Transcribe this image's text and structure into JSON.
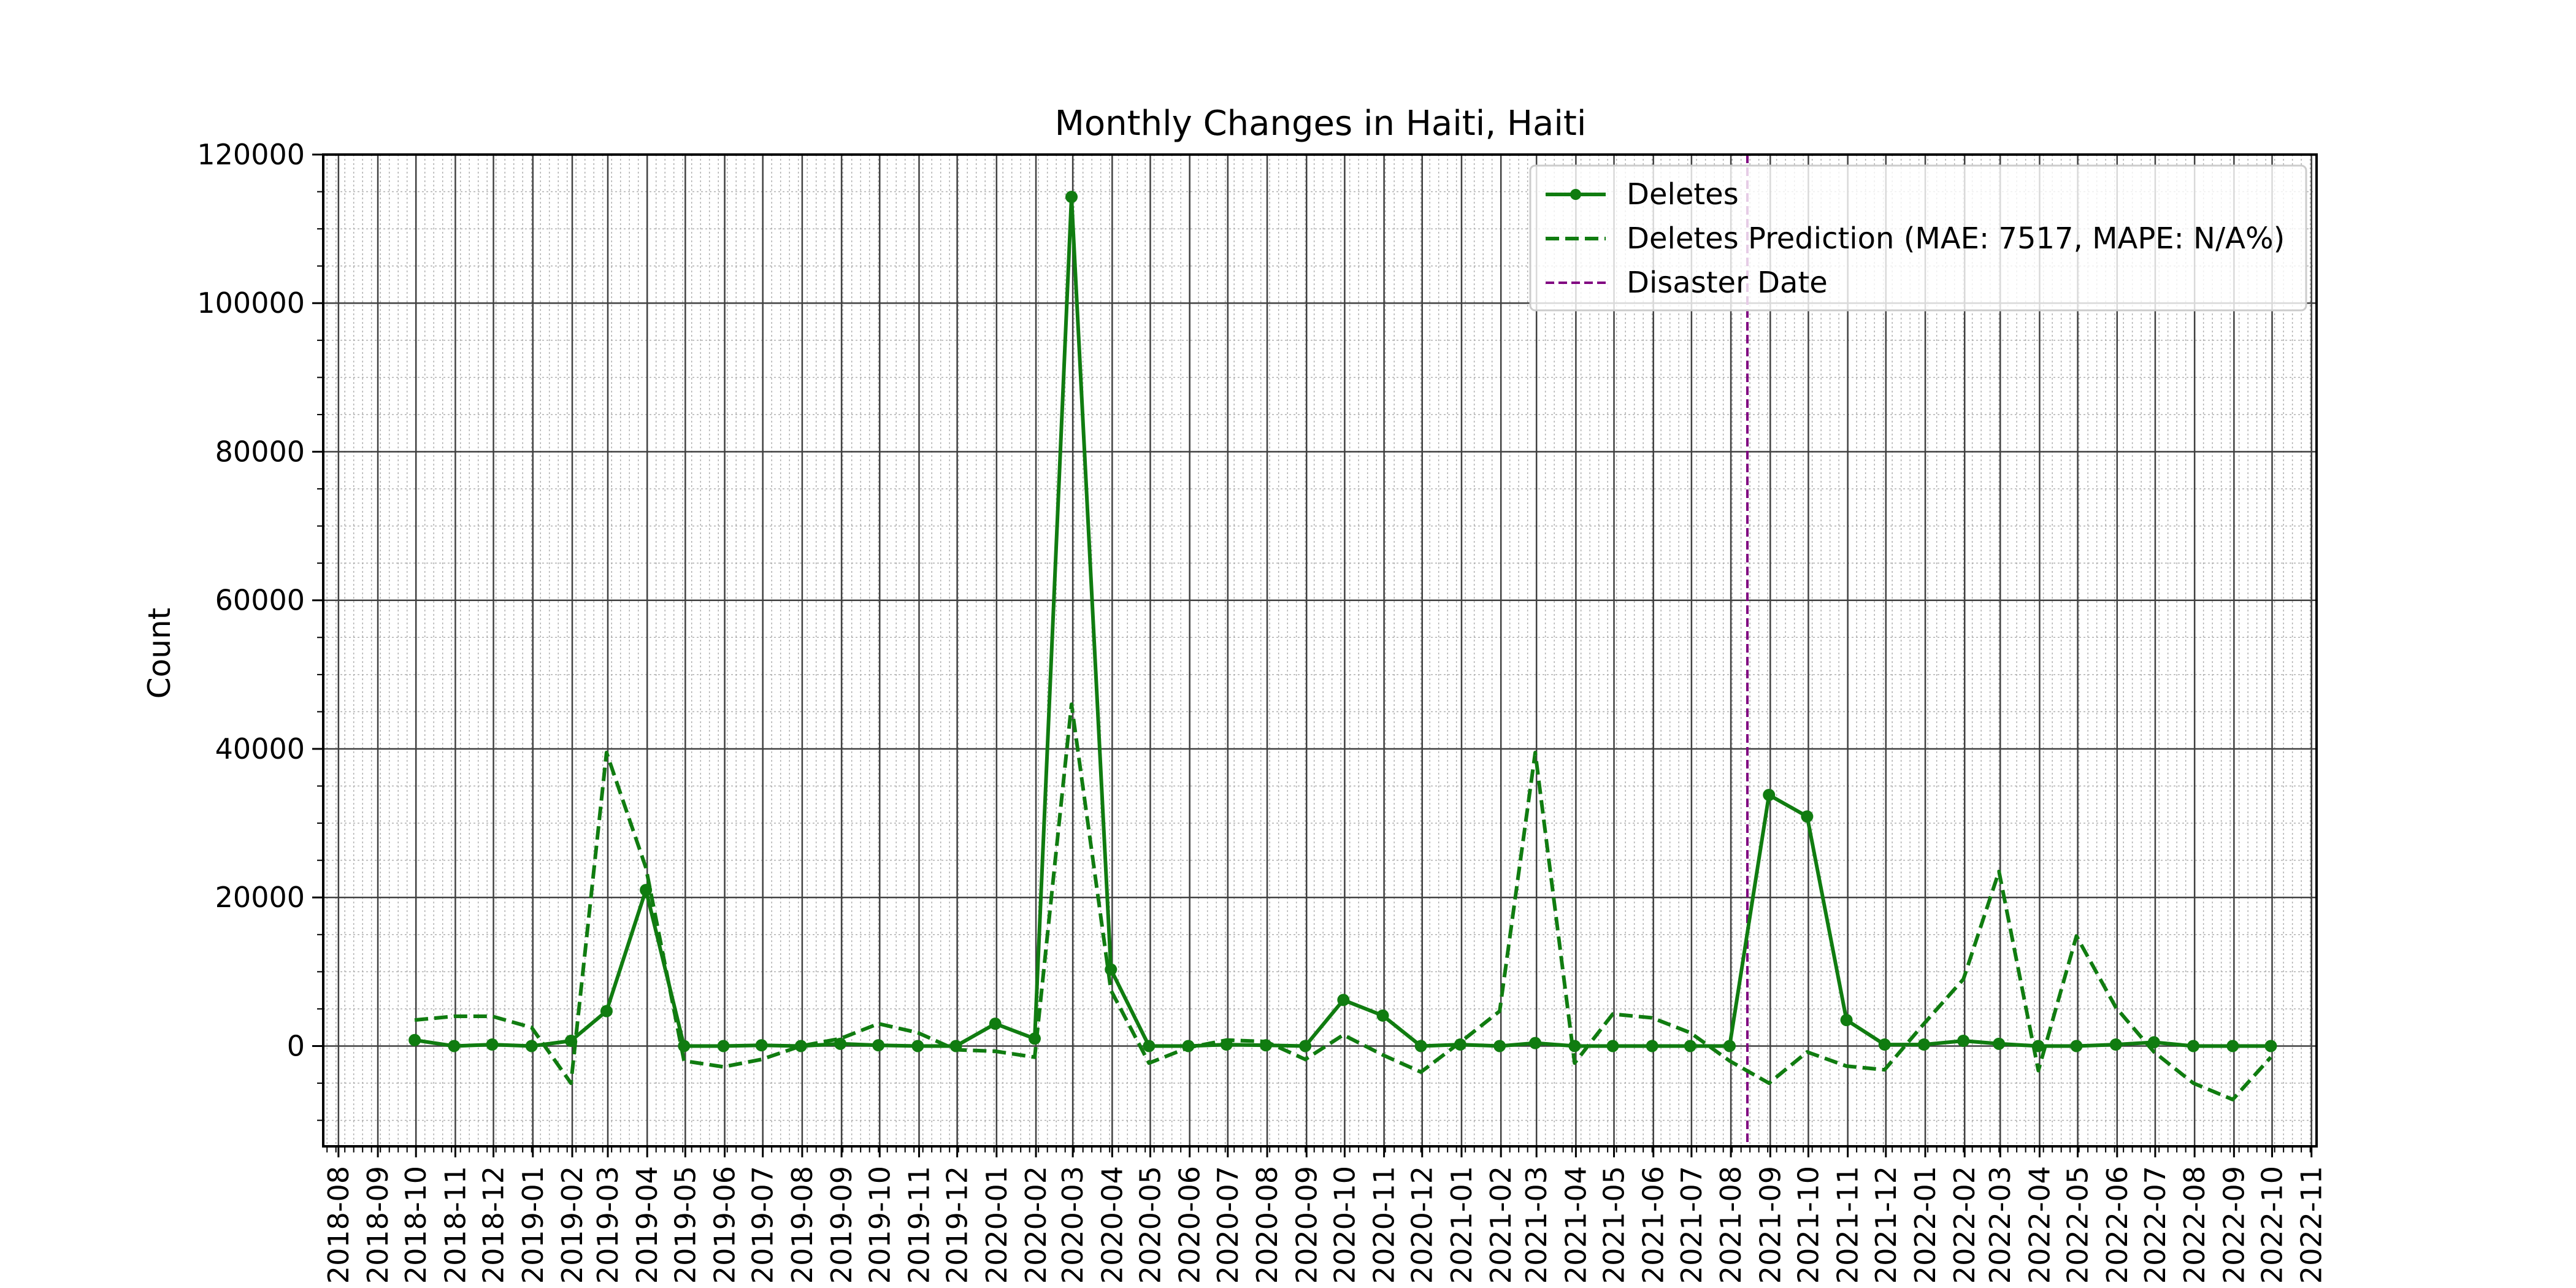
{
  "chart_data": {
    "type": "line",
    "title": "Monthly Changes in Haiti, Haiti",
    "xlabel": "",
    "ylabel": "Count",
    "xlim": [
      "2018-07-20",
      "2022-11-05"
    ],
    "ylim": [
      -13500,
      120000
    ],
    "yticks": [
      0,
      20000,
      40000,
      60000,
      80000,
      100000,
      120000
    ],
    "xticks": [
      "2018-08",
      "2018-09",
      "2018-10",
      "2018-11",
      "2018-12",
      "2019-01",
      "2019-02",
      "2019-03",
      "2019-04",
      "2019-05",
      "2019-06",
      "2019-07",
      "2019-08",
      "2019-09",
      "2019-10",
      "2019-11",
      "2019-12",
      "2020-01",
      "2020-02",
      "2020-03",
      "2020-04",
      "2020-05",
      "2020-06",
      "2020-07",
      "2020-08",
      "2020-09",
      "2020-10",
      "2020-11",
      "2020-12",
      "2021-01",
      "2021-02",
      "2021-03",
      "2021-04",
      "2021-05",
      "2021-06",
      "2021-07",
      "2021-08",
      "2021-09",
      "2021-10",
      "2021-11",
      "2021-12",
      "2022-01",
      "2022-02",
      "2022-03",
      "2022-04",
      "2022-05",
      "2022-06",
      "2022-07",
      "2022-08",
      "2022-09",
      "2022-10",
      "2022-11"
    ],
    "grid": true,
    "legend_position": "top-right",
    "colors": {
      "deletes": "#107c10",
      "disaster": "#800080"
    },
    "series": [
      {
        "name": "Deletes",
        "style": "solid-with-markers",
        "x": [
          "2018-09-30",
          "2018-10-31",
          "2018-11-30",
          "2018-12-31",
          "2019-01-31",
          "2019-02-28",
          "2019-03-31",
          "2019-04-30",
          "2019-05-31",
          "2019-06-30",
          "2019-07-31",
          "2019-08-31",
          "2019-09-30",
          "2019-10-31",
          "2019-11-30",
          "2019-12-31",
          "2020-01-31",
          "2020-02-29",
          "2020-03-31",
          "2020-04-30",
          "2020-05-31",
          "2020-06-30",
          "2020-07-31",
          "2020-08-31",
          "2020-09-30",
          "2020-10-31",
          "2020-11-30",
          "2020-12-31",
          "2021-01-31",
          "2021-02-28",
          "2021-03-31",
          "2021-04-30",
          "2021-05-31",
          "2021-06-30",
          "2021-07-31",
          "2021-08-31",
          "2021-09-30",
          "2021-10-31",
          "2021-11-30",
          "2021-12-31",
          "2022-01-31",
          "2022-02-28",
          "2022-03-31",
          "2022-04-30",
          "2022-05-31",
          "2022-06-30",
          "2022-07-31",
          "2022-08-31",
          "2022-09-30"
        ],
        "values": [
          800,
          0,
          200,
          0,
          700,
          4700,
          21000,
          0,
          0,
          100,
          0,
          300,
          100,
          0,
          0,
          3000,
          1000,
          114300,
          10300,
          0,
          0,
          200,
          100,
          0,
          6200,
          4100,
          0,
          200,
          0,
          400,
          0,
          0,
          0,
          0,
          0,
          33800,
          30900,
          3500,
          200,
          200,
          700,
          300,
          0,
          0,
          200,
          500,
          0,
          0,
          0
        ]
      },
      {
        "name": "Deletes Prediction (MAE: 7517, MAPE: N/A%)",
        "style": "dashed",
        "x": [
          "2018-09-30",
          "2018-10-31",
          "2018-11-30",
          "2018-12-31",
          "2019-01-31",
          "2019-02-28",
          "2019-03-31",
          "2019-04-30",
          "2019-05-31",
          "2019-06-30",
          "2019-07-31",
          "2019-08-31",
          "2019-09-30",
          "2019-10-31",
          "2019-11-30",
          "2019-12-31",
          "2020-01-31",
          "2020-02-29",
          "2020-03-31",
          "2020-04-30",
          "2020-05-31",
          "2020-06-30",
          "2020-07-31",
          "2020-08-31",
          "2020-09-30",
          "2020-10-31",
          "2020-11-30",
          "2020-12-31",
          "2021-01-31",
          "2021-02-28",
          "2021-03-31",
          "2021-04-30",
          "2021-05-31",
          "2021-06-30",
          "2021-07-31",
          "2021-08-31",
          "2021-09-30",
          "2021-10-31",
          "2021-11-30",
          "2021-12-31",
          "2022-01-31",
          "2022-02-28",
          "2022-03-31",
          "2022-04-30",
          "2022-05-31",
          "2022-06-30",
          "2022-07-31",
          "2022-08-31",
          "2022-09-30"
        ],
        "values": [
          3500,
          4000,
          4000,
          2500,
          -5000,
          39500,
          24000,
          -2000,
          -2800,
          -1800,
          0,
          1000,
          3000,
          1800,
          -500,
          -700,
          -1500,
          46000,
          7500,
          -2300,
          -200,
          800,
          600,
          -1800,
          1500,
          -1200,
          -3500,
          500,
          4700,
          39500,
          -2300,
          4300,
          3800,
          1800,
          -2000,
          -5000,
          -800,
          -2700,
          -3200,
          3000,
          9000,
          23500,
          -3300,
          14800,
          5200,
          -800,
          -5000,
          -7200,
          -1500
        ]
      }
    ],
    "vlines": [
      {
        "name": "Disaster Date",
        "x": "2021-08-14",
        "style": "dashed"
      }
    ]
  },
  "legend": {
    "deletes": "Deletes",
    "prediction": "Deletes Prediction (MAE: 7517, MAPE: N/A%)",
    "disaster": "Disaster Date"
  }
}
